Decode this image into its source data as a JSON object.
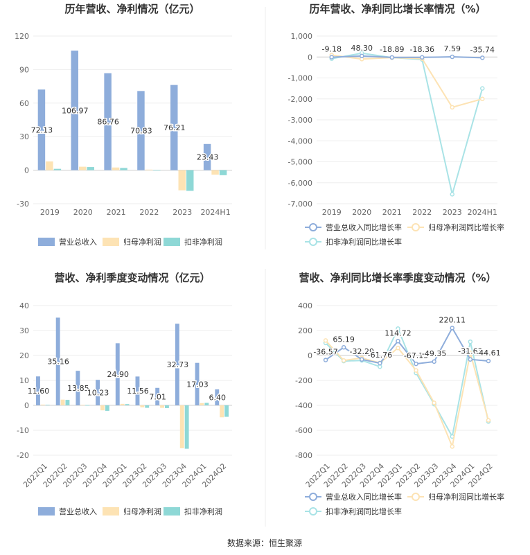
{
  "source": "数据来源：恒生聚源",
  "chart_data": [
    {
      "type": "bar",
      "title": "历年营收、净利情况（亿元）",
      "categories": [
        "2019",
        "2020",
        "2021",
        "2022",
        "2023",
        "2024H1"
      ],
      "ylim": [
        -30,
        120
      ],
      "yticks": [
        "120",
        "90",
        "60",
        "30",
        "0",
        "-30"
      ],
      "ytick_values": [
        120,
        90,
        60,
        30,
        0,
        -30
      ],
      "series": [
        {
          "name": "营业总收入",
          "color": "#8eaddb",
          "values": [
            72.13,
            106.97,
            86.76,
            70.83,
            76.21,
            23.43
          ]
        },
        {
          "name": "归母净利润",
          "color": "#fde3b4",
          "values": [
            7.8,
            3.1,
            2.4,
            0.5,
            -18.0,
            -4.0
          ]
        },
        {
          "name": "扣非净利润",
          "color": "#8ed8d6",
          "values": [
            1.2,
            2.8,
            2.0,
            0.2,
            -18.5,
            -4.5
          ]
        }
      ],
      "data_labels": [
        "72.13",
        "106.97",
        "86.76",
        "70.83",
        "76.21",
        "23.43"
      ]
    },
    {
      "type": "line",
      "title": "历年营收、净利同比增长率情况（%）",
      "categories": [
        "2019",
        "2020",
        "2021",
        "2022",
        "2023",
        "2024H1"
      ],
      "ylim": [
        -7000,
        1000
      ],
      "yticks": [
        "1,000",
        "0",
        "-1,000",
        "-2,000",
        "-3,000",
        "-4,000",
        "-5,000",
        "-6,000",
        "-7,000"
      ],
      "ytick_values": [
        1000,
        0,
        -1000,
        -2000,
        -3000,
        -4000,
        -5000,
        -6000,
        -7000
      ],
      "series": [
        {
          "name": "营业总收入同比增长率",
          "color": "#8eaddb",
          "values": [
            -9.18,
            48.3,
            -18.89,
            -18.36,
            7.59,
            -35.74
          ]
        },
        {
          "name": "归母净利润同比增长率",
          "color": "#fde3b4",
          "values": [
            90,
            -100,
            -30,
            -80,
            -2400,
            -2000
          ]
        },
        {
          "name": "扣非净利润同比增长率",
          "color": "#a9e3e6",
          "values": [
            -80,
            180,
            -30,
            -120,
            -6550,
            -1500
          ]
        }
      ],
      "data_labels": [
        "-9.18",
        "48.30",
        "-18.89",
        "-18.36",
        "7.59",
        "-35.74"
      ]
    },
    {
      "type": "bar",
      "title": "营收、净利季度变动情况（亿元）",
      "categories": [
        "2022Q1",
        "2022Q2",
        "2022Q3",
        "2022Q4",
        "2023Q1",
        "2023Q2",
        "2023Q3",
        "2023Q4",
        "2024Q1",
        "2024Q2"
      ],
      "ylim": [
        -20,
        40
      ],
      "yticks": [
        "40",
        "30",
        "20",
        "10",
        "0",
        "-10",
        "-20"
      ],
      "ytick_values": [
        40,
        30,
        20,
        10,
        0,
        -10,
        -20
      ],
      "series": [
        {
          "name": "营业总收入",
          "color": "#8eaddb",
          "values": [
            11.6,
            35.16,
            13.85,
            10.23,
            24.9,
            11.56,
            7.01,
            32.73,
            17.03,
            6.4
          ]
        },
        {
          "name": "归母净利润",
          "color": "#fde3b4",
          "values": [
            0.3,
            2.3,
            0.2,
            -2.0,
            0.6,
            -0.8,
            -1.0,
            -17.2,
            0.9,
            -4.8
          ]
        },
        {
          "name": "扣非净利润",
          "color": "#8ed8d6",
          "values": [
            0.2,
            2.2,
            0.1,
            -2.2,
            0.5,
            -1.0,
            -1.1,
            -17.4,
            1.0,
            -4.6
          ]
        }
      ],
      "data_labels": [
        "11.60",
        "35.16",
        "13.85",
        "10.23",
        "24.90",
        "11.56",
        "7.01",
        "32.73",
        "17.03",
        "6.40"
      ]
    },
    {
      "type": "line",
      "title": "营收、净利同比增长率季度变动情况（%）",
      "categories": [
        "2022Q1",
        "2022Q2",
        "2022Q3",
        "2022Q4",
        "2023Q1",
        "2023Q2",
        "2023Q3",
        "2023Q4",
        "2024Q1",
        "2024Q2"
      ],
      "ylim": [
        -800,
        400
      ],
      "yticks": [
        "400",
        "200",
        "0",
        "-200",
        "-400",
        "-600",
        "-800"
      ],
      "ytick_values": [
        400,
        200,
        0,
        -200,
        -400,
        -600,
        -800
      ],
      "series": [
        {
          "name": "营业总收入同比增长率",
          "color": "#8eaddb",
          "values": [
            -36.57,
            65.19,
            -32.29,
            -61.76,
            114.72,
            -67.13,
            -49.35,
            220.11,
            -31.63,
            -44.61
          ]
        },
        {
          "name": "归母净利润同比增长率",
          "color": "#fde3b4",
          "values": [
            120,
            -40,
            -20,
            -60,
            60,
            -120,
            -380,
            -730,
            20,
            -520
          ]
        },
        {
          "name": "扣非净利润同比增长率",
          "color": "#a9e3e6",
          "values": [
            100,
            -45,
            -40,
            -90,
            215,
            -140,
            -390,
            -650,
            110,
            -530
          ]
        }
      ],
      "data_labels": [
        "-36.57",
        "65.19",
        "-32.29",
        "-61.76",
        "114.72",
        "-67.13",
        "-49.35",
        "220.11",
        "-31.63",
        "-44.61"
      ]
    }
  ]
}
